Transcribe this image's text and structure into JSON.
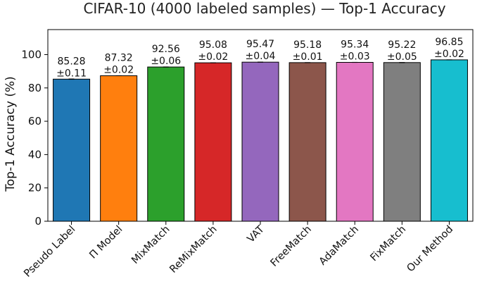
{
  "chart_data": {
    "type": "bar",
    "title": "CIFAR-10 (4000 labeled samples) — Top-1 Accuracy",
    "ylabel": "Top-1 Accuracy (%)",
    "xlabel": "",
    "ylim": [
      0,
      115
    ],
    "yticks": [
      "0",
      "20",
      "40",
      "60",
      "80",
      "100"
    ],
    "grid": false,
    "legend": "none",
    "categories": [
      "Pseudo Label",
      "Π Model",
      "MixMatch",
      "ReMixMatch",
      "VAT",
      "FreeMatch",
      "AdaMatch",
      "FixMatch",
      "Our Method"
    ],
    "values": [
      85.28,
      87.32,
      92.56,
      95.08,
      95.47,
      95.18,
      95.34,
      95.22,
      96.85
    ],
    "errors": [
      0.11,
      0.02,
      0.06,
      0.02,
      0.04,
      0.01,
      0.03,
      0.05,
      0.02
    ],
    "value_labels": [
      "85.28",
      "87.32",
      "92.56",
      "95.08",
      "95.47",
      "95.18",
      "95.34",
      "95.22",
      "96.85"
    ],
    "error_labels": [
      "±0.11",
      "±0.02",
      "±0.06",
      "±0.02",
      "±0.04",
      "±0.01",
      "±0.03",
      "±0.05",
      "±0.02"
    ],
    "colors": [
      "#1f77b4",
      "#ff7f0e",
      "#2ca02c",
      "#d62728",
      "#9467bd",
      "#8c564b",
      "#e377c2",
      "#7f7f7f",
      "#17becf"
    ]
  }
}
